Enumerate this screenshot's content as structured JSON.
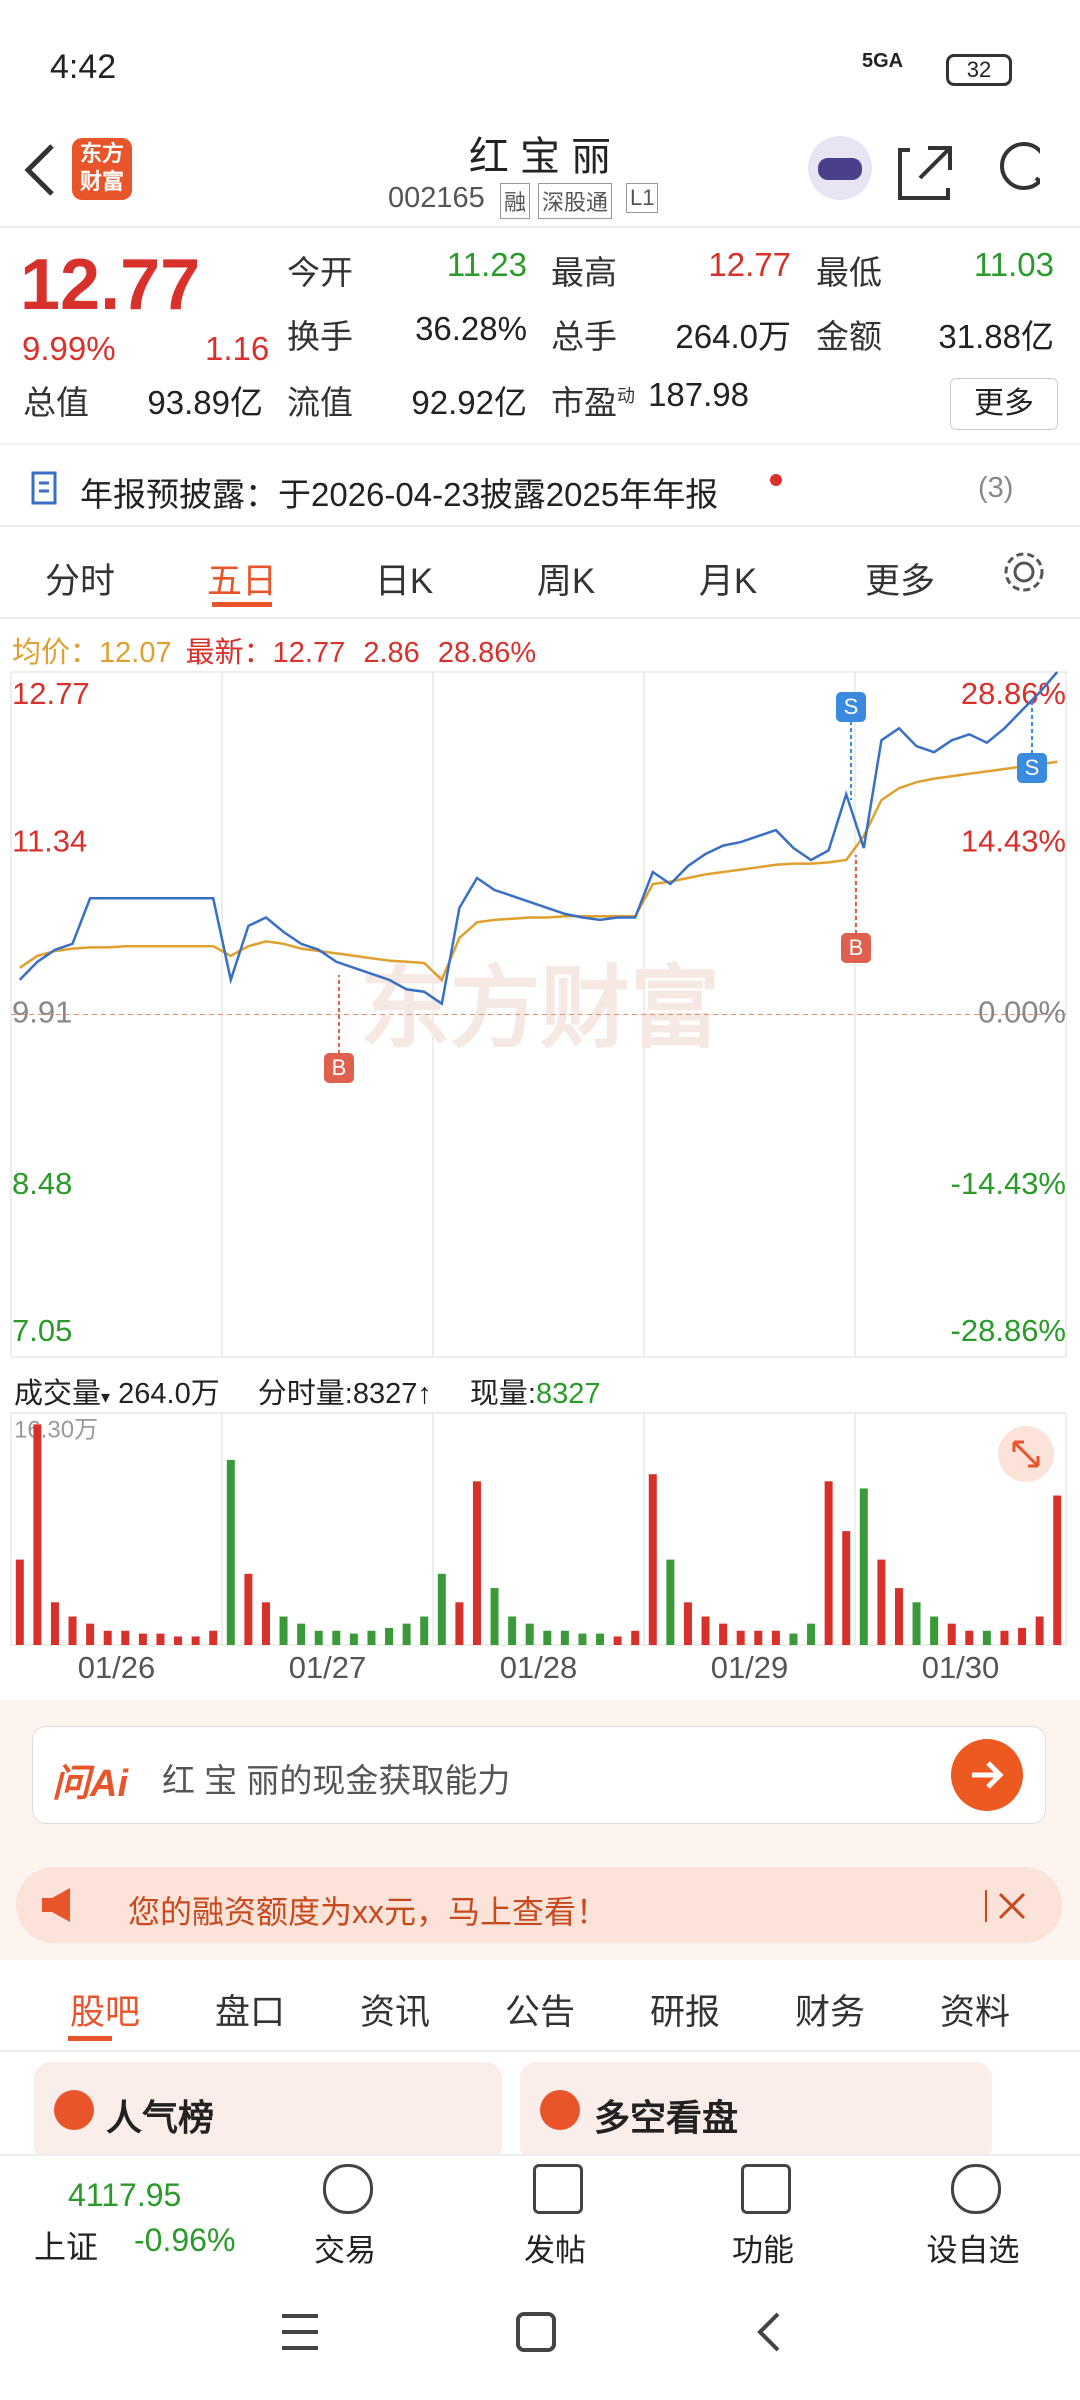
{
  "status_bar": {
    "time": "4:42",
    "network": "5GA",
    "battery": "32"
  },
  "header": {
    "logo": "东方财富",
    "title": "红 宝 丽",
    "code": "002165",
    "badges": [
      "融",
      "深股通",
      "L1"
    ]
  },
  "quote": {
    "price": "12.77",
    "change_pct": "9.99%",
    "change": "1.16",
    "fields": [
      {
        "label": "今开",
        "value": "11.23"
      },
      {
        "label": "最高",
        "value": "12.77"
      },
      {
        "label": "最低",
        "value": "11.03"
      },
      {
        "label": "换手",
        "value": "36.28%"
      },
      {
        "label": "总手",
        "value": "264.0万"
      },
      {
        "label": "金额",
        "value": "31.88亿"
      },
      {
        "label": "总值",
        "value": "93.89亿"
      },
      {
        "label": "流值",
        "value": "92.92亿"
      },
      {
        "label": "市盈",
        "sup": "动",
        "value": "187.98"
      }
    ],
    "more": "更多"
  },
  "notice": {
    "text": "年报预披露：于2026-04-23披露2025年年报",
    "count": "(3)"
  },
  "chart_tabs": [
    "分时",
    "五日",
    "日K",
    "周K",
    "月K",
    "更多"
  ],
  "info": {
    "avg_label": "均价：",
    "avg": "12.07",
    "latest_label": "最新：",
    "latest": "12.77",
    "change": "2.86",
    "change_pct": "28.86%"
  },
  "chart_data": [
    {
      "type": "line",
      "ylim": [
        7.05,
        12.77
      ],
      "yticks": [
        7.05,
        8.48,
        9.91,
        11.34,
        12.77
      ],
      "y2lim": [
        -28.86,
        28.86
      ],
      "y2ticks": [
        {
          "value": -28.86,
          "label": "-28.86%"
        },
        {
          "value": -14.43,
          "label": "-14.43%"
        },
        {
          "value": 0,
          "label": "0.00%"
        },
        {
          "value": 14.43,
          "label": "14.43%"
        },
        {
          "value": 28.86,
          "label": "28.86%"
        }
      ],
      "watermark": "东方财富",
      "markers": [
        "S",
        "S",
        "B",
        "B"
      ],
      "series": [
        {
          "color": "#3a6fc4",
          "values": [
            10.2,
            10.35,
            10.45,
            10.5,
            10.88,
            10.88,
            10.88,
            10.88,
            10.88,
            10.88,
            10.88,
            10.88,
            10.2,
            10.65,
            10.72,
            10.6,
            10.5,
            10.45,
            10.35,
            10.3,
            10.25,
            10.2,
            10.12,
            10.1,
            10.0,
            10.8,
            11.05,
            10.95,
            10.9,
            10.85,
            10.8,
            10.75,
            10.72,
            10.7,
            10.72,
            10.72,
            11.1,
            11.0,
            11.15,
            11.25,
            11.32,
            11.35,
            11.4,
            11.45,
            11.3,
            11.2,
            11.28,
            11.75,
            11.3,
            12.2,
            12.3,
            12.15,
            12.1,
            12.2,
            12.25,
            12.18,
            12.3,
            12.45,
            12.6,
            12.77
          ]
        },
        {
          "color": "#e0a030",
          "values": [
            10.3,
            10.4,
            10.44,
            10.46,
            10.47,
            10.47,
            10.48,
            10.48,
            10.48,
            10.48,
            10.48,
            10.48,
            10.4,
            10.48,
            10.52,
            10.5,
            10.46,
            10.44,
            10.42,
            10.4,
            10.38,
            10.36,
            10.35,
            10.34,
            10.2,
            10.55,
            10.68,
            10.7,
            10.71,
            10.72,
            10.72,
            10.73,
            10.73,
            10.73,
            10.73,
            10.73,
            11.0,
            11.02,
            11.05,
            11.08,
            11.1,
            11.12,
            11.14,
            11.16,
            11.17,
            11.17,
            11.18,
            11.2,
            11.4,
            11.7,
            11.8,
            11.85,
            11.88,
            11.9,
            11.92,
            11.94,
            11.96,
            11.98,
            12.0,
            12.02
          ]
        }
      ]
    },
    {
      "type": "bar",
      "ylim": [
        0,
        16.3
      ],
      "yticks": [
        {
          "value": 16.3,
          "label": "16.30万"
        }
      ],
      "days": [
        "01/26",
        "01/27",
        "01/28",
        "01/29",
        "01/30"
      ],
      "values": [
        6,
        15.5,
        3,
        2,
        1.5,
        1,
        1,
        0.8,
        0.8,
        0.6,
        0.6,
        1,
        13,
        5,
        3,
        2,
        1.5,
        1,
        1,
        0.8,
        1,
        1.2,
        1.5,
        2,
        5,
        3,
        11.5,
        4,
        2,
        1.5,
        1,
        1,
        0.8,
        0.8,
        0.6,
        1,
        12,
        6,
        3,
        2,
        1.5,
        1,
        1,
        1,
        0.8,
        1.5,
        11.5,
        8,
        11,
        6,
        4,
        3,
        2,
        1.5,
        1,
        1,
        1,
        1.2,
        2,
        10.5
      ]
    }
  ],
  "volume_info": {
    "label": "成交量",
    "total": "264.0万",
    "tick_label": "分时量:",
    "tick": "8327",
    "current_label": "现量:",
    "current": "8327"
  },
  "ai": {
    "logo": "问Ai",
    "prompt": "红 宝 丽的现金获取能力"
  },
  "banner": "您的融资额度为xx元，马上查看！",
  "tabs": [
    "股吧",
    "盘口",
    "资讯",
    "公告",
    "研报",
    "财务",
    "资料"
  ],
  "cards": [
    "人气榜",
    "多空看盘"
  ],
  "bottom": {
    "index_value": "4117.95",
    "index_name": "上证",
    "index_change": "-0.96%",
    "actions": [
      "交易",
      "发帖",
      "功能",
      "设自选"
    ]
  }
}
